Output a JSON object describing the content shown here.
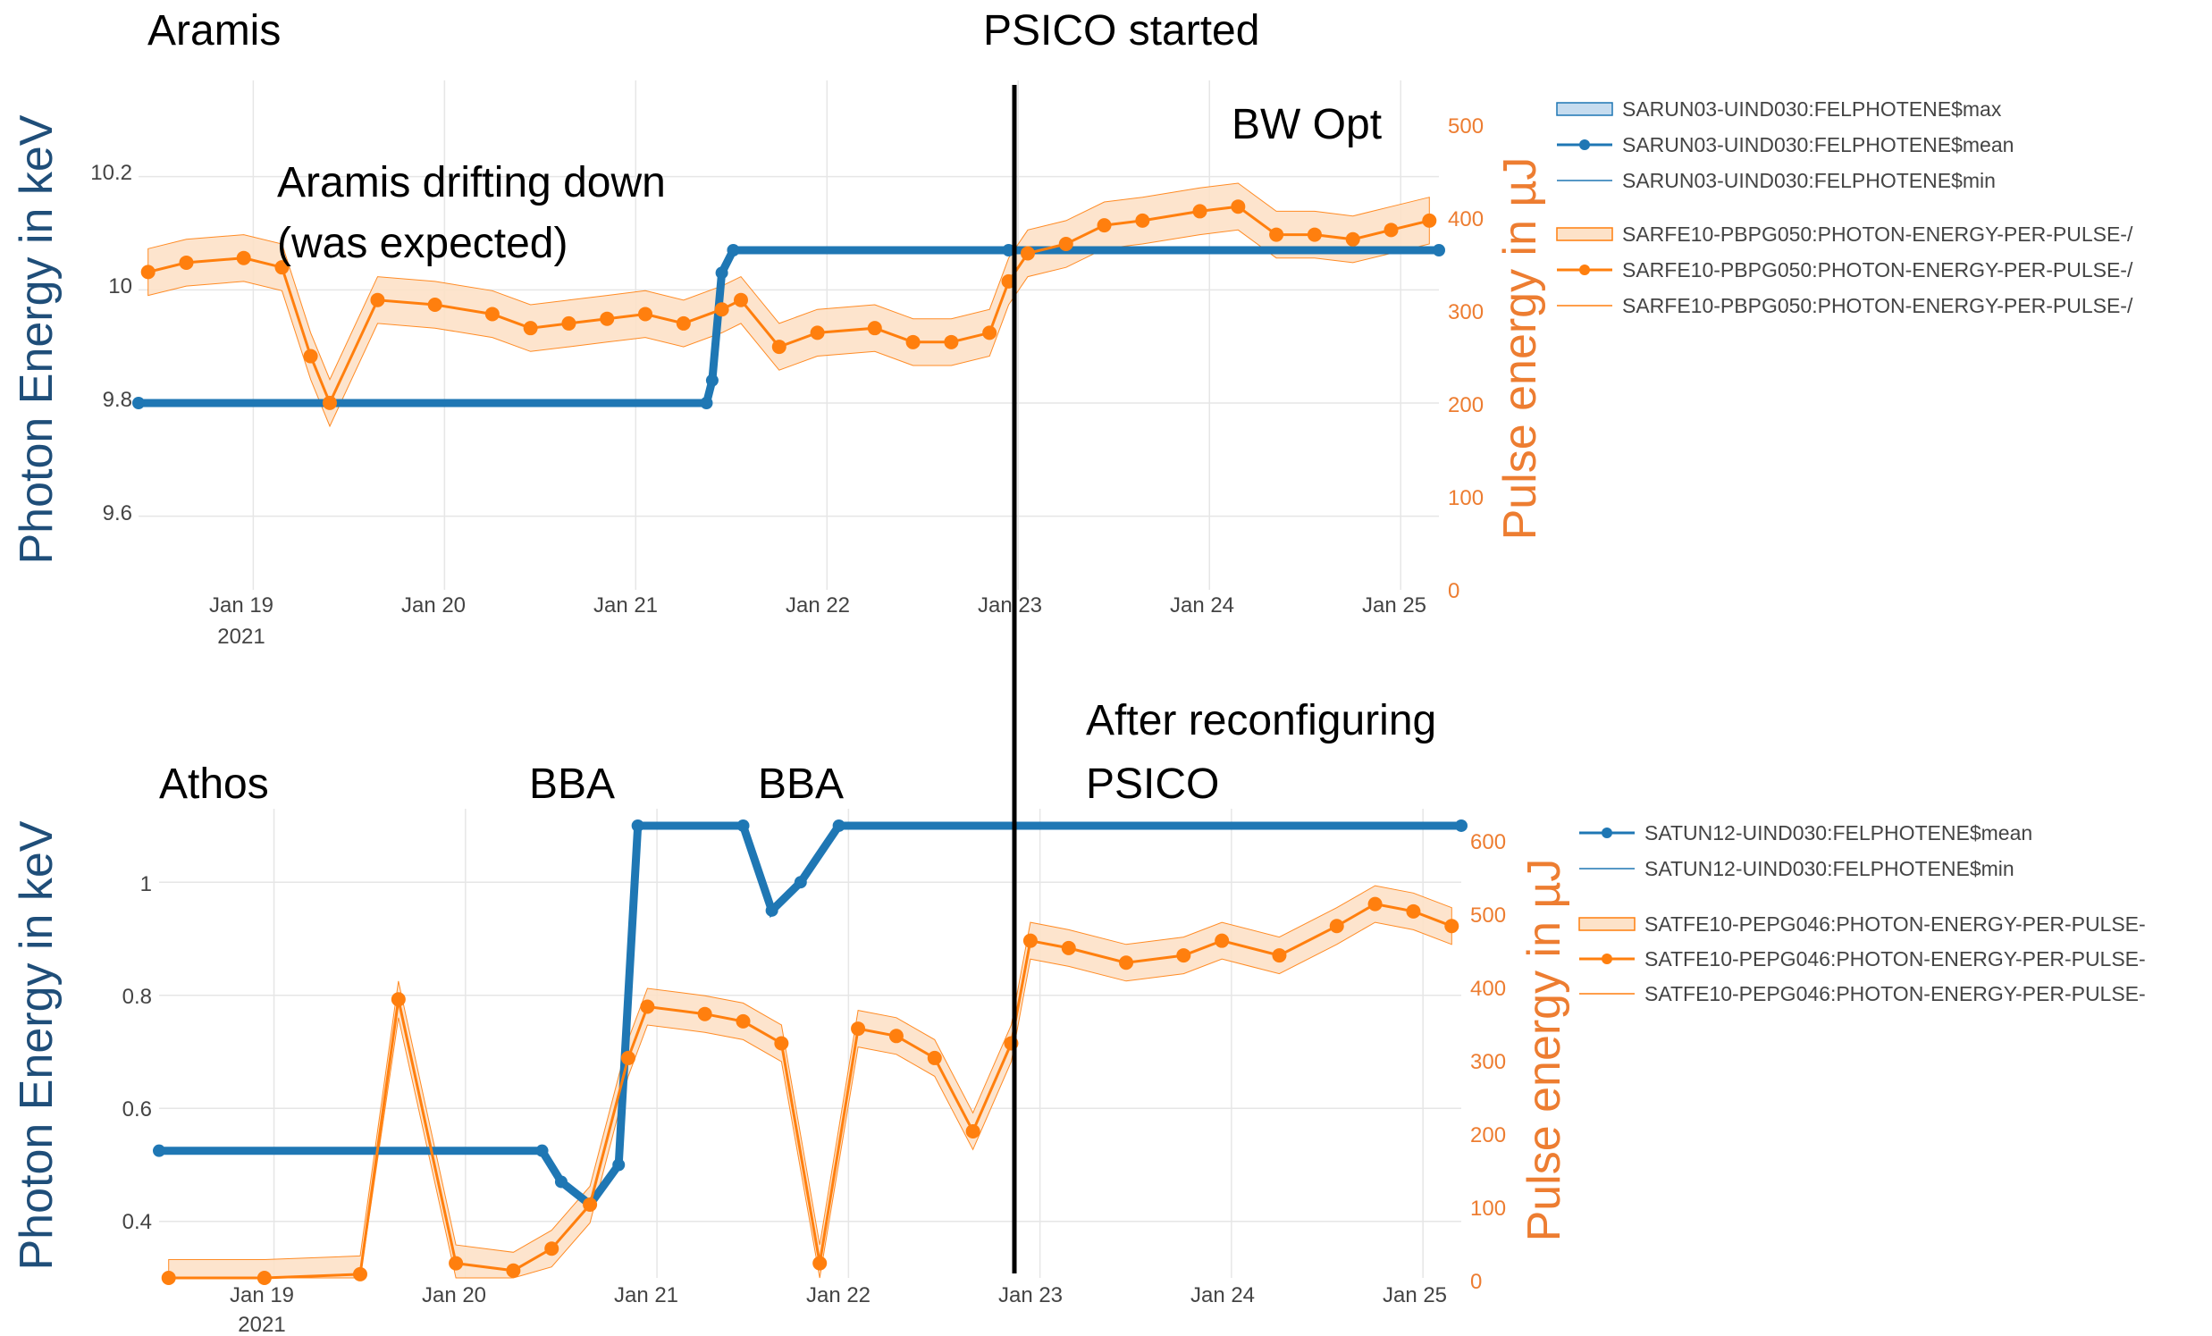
{
  "colors": {
    "blue": "#1f77b4",
    "orange": "#ff7f0e",
    "blue_fill": "#c6dcef",
    "orange_fill": "#fde2c8",
    "grid": "#e6e6e6",
    "left_axis_title": "#1f4e79",
    "right_axis_title": "#ed7d31",
    "marker_line": "#000000"
  },
  "x_ticks": [
    "Jan 19",
    "Jan 20",
    "Jan 21",
    "Jan 22",
    "Jan 23",
    "Jan 24",
    "Jan 25"
  ],
  "x_year": "2021",
  "psico_label": "PSICO started",
  "chart_data": [
    {
      "type": "line",
      "panel": "top",
      "annotations": [
        "Aramis",
        "Aramis drifting down",
        "(was expected)",
        "BW Opt"
      ],
      "ylabel": "Photon Energy in keV",
      "y2label": "Pulse energy in µJ",
      "yticks": [
        "10.2",
        "10",
        "9.8",
        "9.6"
      ],
      "y2ticks": [
        "500",
        "400",
        "300",
        "200",
        "100",
        "0"
      ],
      "ylim": [
        9.47,
        10.37
      ],
      "y2lim": [
        0,
        545
      ],
      "xlim": [
        18.45,
        25.25
      ],
      "legend": {
        "position": "right",
        "entries": [
          "SARUN03-UIND030:FELPHOTENE$max",
          "SARUN03-UIND030:FELPHOTENE$mean",
          "SARUN03-UIND030:FELPHOTENE$min",
          "SARFE10-PBPG050:PHOTON-ENERGY-PER-PULSE-/",
          "SARFE10-PBPG050:PHOTON-ENERGY-PER-PULSE-/",
          "SARFE10-PBPG050:PHOTON-ENERGY-PER-PULSE-/"
        ]
      },
      "photon_energy_mean": {
        "x": [
          18.45,
          21.42,
          21.45,
          21.5,
          21.56,
          23.0,
          25.25
        ],
        "y": [
          9.8,
          9.8,
          9.84,
          10.03,
          10.07,
          10.07,
          10.07
        ]
      },
      "pulse_energy_mean": {
        "x": [
          18.5,
          18.7,
          19.0,
          19.2,
          19.35,
          19.45,
          19.7,
          20.0,
          20.3,
          20.5,
          20.7,
          20.9,
          21.1,
          21.3,
          21.5,
          21.6,
          21.8,
          22.0,
          22.3,
          22.5,
          22.7,
          22.9,
          23.0,
          23.1,
          23.3,
          23.5,
          23.7,
          24.0,
          24.2,
          24.4,
          24.6,
          24.8,
          25.0,
          25.2
        ],
        "y": [
          340,
          350,
          355,
          345,
          250,
          200,
          310,
          305,
          295,
          280,
          285,
          290,
          295,
          285,
          300,
          310,
          260,
          275,
          280,
          265,
          265,
          275,
          330,
          360,
          370,
          390,
          395,
          405,
          410,
          380,
          380,
          375,
          385,
          395
        ]
      }
    },
    {
      "type": "line",
      "panel": "bottom",
      "annotations": [
        "Athos",
        "BBA",
        "BBA",
        "After reconfiguring",
        "PSICO"
      ],
      "ylabel": "Photon Energy in keV",
      "y2label": "Pulse energy in µJ",
      "yticks": [
        "1",
        "0.8",
        "0.6",
        "0.4"
      ],
      "y2ticks": [
        "600",
        "500",
        "400",
        "300",
        "200",
        "100",
        "0"
      ],
      "ylim": [
        0.3,
        1.13
      ],
      "y2lim": [
        0,
        640
      ],
      "xlim": [
        18.45,
        25.25
      ],
      "legend": {
        "position": "right",
        "entries": [
          "SATUN12-UIND030:FELPHOTENE$mean",
          "SATUN12-UIND030:FELPHOTENE$min",
          "SATFE10-PEPG046:PHOTON-ENERGY-PER-PULSE-",
          "SATFE10-PEPG046:PHOTON-ENERGY-PER-PULSE-",
          "SATFE10-PEPG046:PHOTON-ENERGY-PER-PULSE-"
        ]
      },
      "photon_energy_mean": {
        "x": [
          18.45,
          20.45,
          20.55,
          20.7,
          20.85,
          20.95,
          21.5,
          21.65,
          21.8,
          22.0,
          25.25
        ],
        "y": [
          0.525,
          0.525,
          0.47,
          0.43,
          0.5,
          1.1,
          1.1,
          0.95,
          1.0,
          1.1,
          1.1
        ]
      },
      "pulse_energy_mean": {
        "x": [
          18.5,
          19.0,
          19.5,
          19.7,
          20.0,
          20.3,
          20.5,
          20.7,
          20.9,
          21.0,
          21.3,
          21.5,
          21.7,
          21.9,
          22.1,
          22.3,
          22.5,
          22.7,
          22.9,
          23.0,
          23.2,
          23.5,
          23.8,
          24.0,
          24.3,
          24.6,
          24.8,
          25.0,
          25.2
        ],
        "y": [
          0,
          0,
          5,
          380,
          20,
          10,
          40,
          100,
          300,
          370,
          360,
          350,
          320,
          20,
          340,
          330,
          300,
          200,
          320,
          460,
          450,
          430,
          440,
          460,
          440,
          480,
          510,
          500,
          480
        ]
      }
    }
  ]
}
